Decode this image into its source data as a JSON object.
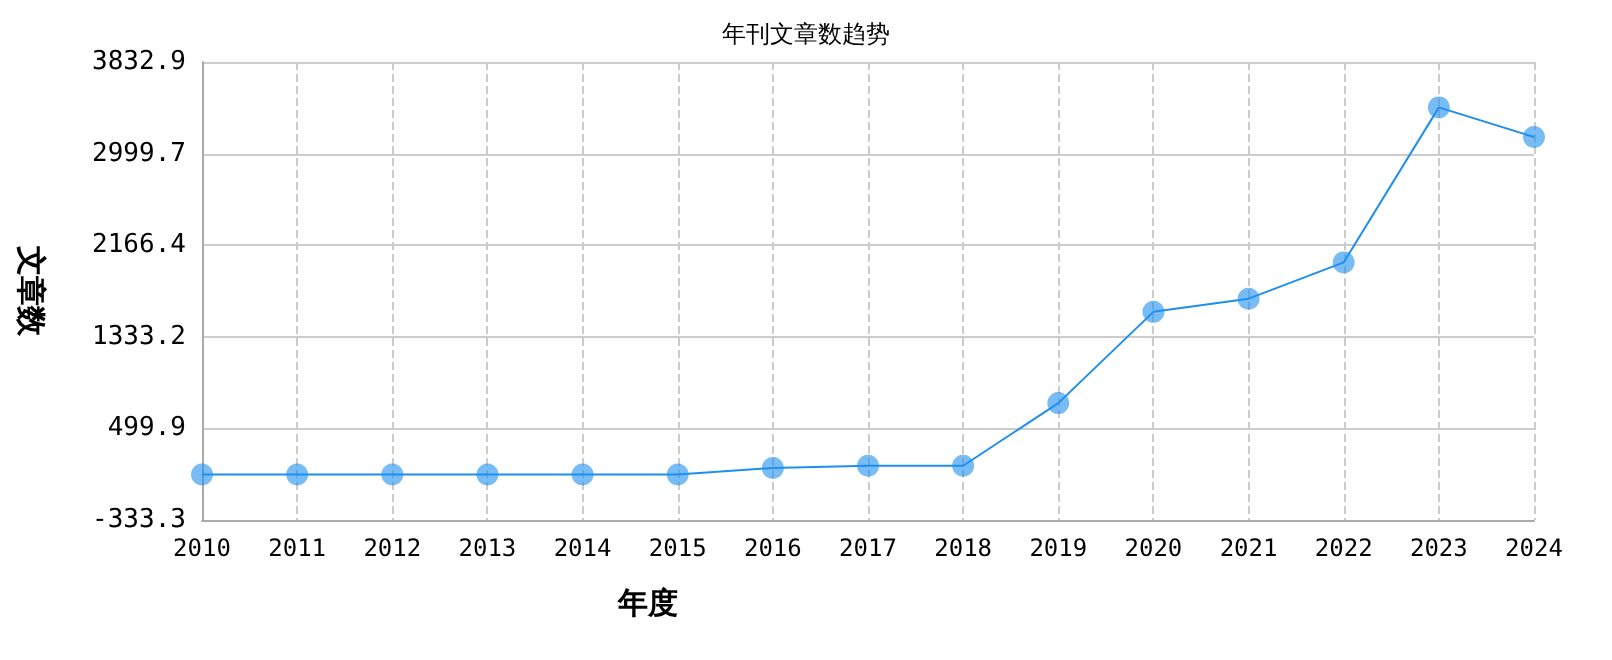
{
  "chart_data": {
    "type": "line",
    "title": "年刊文章数趋势",
    "xlabel": "年度",
    "ylabel": "文章数",
    "categories": [
      "2010",
      "2011",
      "2012",
      "2013",
      "2014",
      "2015",
      "2016",
      "2017",
      "2018",
      "2019",
      "2020",
      "2021",
      "2022",
      "2023",
      "2024"
    ],
    "series": [
      {
        "color": "#1e8fef",
        "values": [
          80,
          80,
          80,
          80,
          80,
          80,
          140,
          160,
          160,
          730,
          1560,
          1680,
          2010,
          3420,
          3150
        ]
      }
    ],
    "ylim": [
      -333.3,
      3832.9
    ],
    "yticks": [
      -333.3,
      499.9,
      1333.2,
      2166.4,
      2999.7,
      3832.9
    ],
    "grid": true,
    "marker": "circle",
    "line_style": "solid"
  }
}
